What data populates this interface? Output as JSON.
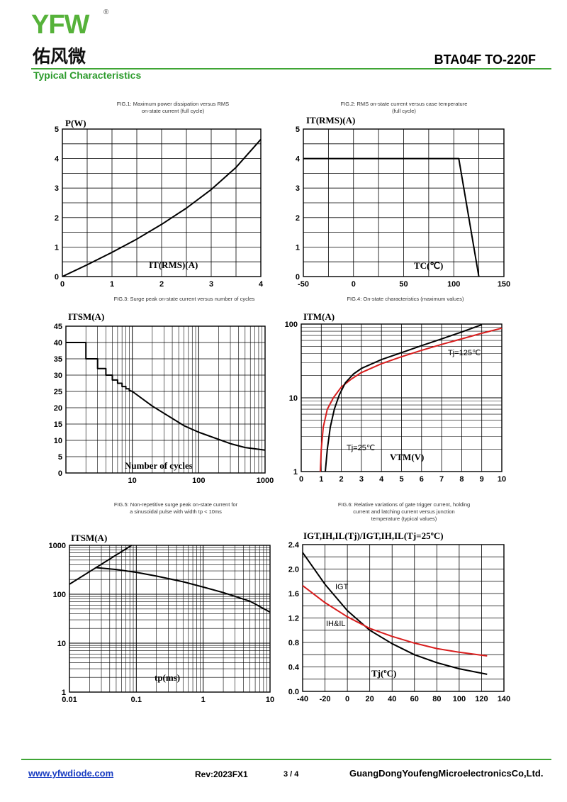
{
  "header": {
    "logo_letters": "YFW",
    "logo_registered": "®",
    "logo_cn": "佑风微",
    "part_number": "BTA04F   TO-220F",
    "section_title": "Typical Characteristics"
  },
  "footer": {
    "website": "www.yfwdiode.com",
    "revision": "Rev:2023FX1",
    "page": "3 / 4",
    "company": "GuangDongYoufengMicroelectronicsCo,Ltd."
  },
  "colors": {
    "brand_green": "#3fa535",
    "curve_black": "#000000",
    "curve_red": "#d81e1e",
    "grid": "#000000"
  },
  "chart_data": [
    {
      "id": "fig1",
      "type": "line",
      "caption": [
        "FIG.1: Maximum power dissipation versus RMS",
        "on-state current (full cycle)"
      ],
      "ylabel": "P(W)",
      "xlabel": "IT(RMS)(A)",
      "xlim": [
        0,
        4
      ],
      "ylim": [
        0,
        5
      ],
      "x_ticks": [
        "0",
        "1",
        "2",
        "3",
        "4"
      ],
      "y_ticks": [
        "0",
        "1",
        "2",
        "3",
        "4",
        "5"
      ],
      "grid": true,
      "series": [
        {
          "color": "black",
          "x": [
            0,
            0.5,
            1,
            1.5,
            2,
            2.5,
            3,
            3.5,
            4
          ],
          "y": [
            0,
            0.4,
            0.82,
            1.27,
            1.77,
            2.32,
            2.95,
            3.7,
            4.65
          ]
        }
      ]
    },
    {
      "id": "fig2",
      "type": "line",
      "caption": [
        "FIG.2: RMS on-state current versus case temperature",
        "(full cycle)"
      ],
      "ylabel": "IT(RMS)(A)",
      "xlabel": "TC(℃)",
      "xlim": [
        -50,
        150
      ],
      "ylim": [
        0,
        5
      ],
      "x_ticks": [
        "-50",
        "0",
        "50",
        "100",
        "150"
      ],
      "y_ticks": [
        "0",
        "1",
        "2",
        "3",
        "4",
        "5"
      ],
      "grid": true,
      "series": [
        {
          "color": "black",
          "x": [
            -50,
            105,
            125
          ],
          "y": [
            4,
            4,
            0
          ]
        }
      ]
    },
    {
      "id": "fig3",
      "type": "line",
      "caption": [
        "FIG.3: Surge peak on-state current versus number of cycles"
      ],
      "ylabel": "ITSM(A)",
      "xlabel": "Number of cycles",
      "x_scale": "log",
      "xlim": [
        1,
        1000
      ],
      "ylim": [
        0,
        45
      ],
      "x_ticks": [
        "10",
        "100",
        "1000"
      ],
      "y_ticks": [
        "0",
        "5",
        "10",
        "15",
        "20",
        "25",
        "30",
        "35",
        "40",
        "45"
      ],
      "grid": true,
      "series": [
        {
          "color": "black",
          "x": [
            1,
            2,
            2,
            3,
            3,
            4,
            4,
            5,
            5,
            6,
            6,
            7,
            7,
            8,
            8,
            9,
            9,
            10,
            20,
            60,
            100,
            300,
            500,
            1000
          ],
          "y": [
            40,
            40,
            35,
            35,
            32,
            32,
            30,
            30,
            28.5,
            28.5,
            27.5,
            27.5,
            26.5,
            26.5,
            25.8,
            25.8,
            25.3,
            25,
            20.5,
            14.5,
            12.5,
            9,
            7.8,
            7
          ]
        }
      ]
    },
    {
      "id": "fig4",
      "type": "line",
      "caption": [
        "FIG.4: On-state characteristics (maximum values)"
      ],
      "ylabel": "ITM(A)",
      "xlabel": "VTM(V)",
      "y_scale": "log",
      "xlim": [
        0,
        10
      ],
      "ylim": [
        1,
        100
      ],
      "x_ticks": [
        "0",
        "1",
        "2",
        "3",
        "4",
        "5",
        "6",
        "7",
        "8",
        "9",
        "10"
      ],
      "y_ticks": [
        "1",
        "10",
        "100"
      ],
      "grid": true,
      "annotations": [
        "Tj=125℃",
        "Tj=25℃"
      ],
      "series": [
        {
          "name": "Tj=125℃",
          "color": "red",
          "x": [
            0.95,
            1.0,
            1.1,
            1.3,
            1.6,
            2.0,
            2.5,
            3.0,
            4.0,
            5.0,
            6.0,
            7.0,
            8.0,
            9.0,
            10.0
          ],
          "y": [
            1,
            2,
            4,
            7,
            10,
            14,
            18,
            22,
            29,
            36,
            44,
            53,
            63,
            75,
            88
          ]
        },
        {
          "name": "Tj=25℃",
          "color": "black",
          "x": [
            1.2,
            1.3,
            1.45,
            1.65,
            1.9,
            2.2,
            2.6,
            3.0,
            4.0,
            5.0,
            6.0,
            7.0,
            8.0,
            9.0
          ],
          "y": [
            1,
            2,
            4,
            7,
            11,
            16,
            21,
            25,
            33,
            41,
            51,
            63,
            78,
            98
          ]
        }
      ]
    },
    {
      "id": "fig5",
      "type": "line",
      "caption": [
        "FIG.5: Non-repetitive surge peak on-state current for",
        "a sinusoidal pulse with width tp < 10ms"
      ],
      "ylabel": "ITSM(A)",
      "xlabel": "tp(ms)",
      "x_scale": "log",
      "y_scale": "log",
      "xlim": [
        0.01,
        10
      ],
      "ylim": [
        1,
        1000
      ],
      "x_ticks": [
        "0.01",
        "0.1",
        "1",
        "10"
      ],
      "y_ticks": [
        "1",
        "10",
        "100",
        "1000"
      ],
      "grid": true,
      "series": [
        {
          "color": "black",
          "x": [
            0.01,
            0.085
          ],
          "y": [
            160,
            1000
          ]
        },
        {
          "color": "black",
          "x": [
            0.025,
            0.05,
            0.1,
            0.2,
            0.5,
            1,
            2,
            5,
            10
          ],
          "y": [
            350,
            320,
            280,
            235,
            180,
            140,
            108,
            72,
            43
          ]
        }
      ]
    },
    {
      "id": "fig6",
      "type": "line",
      "caption": [
        "FIG.6: Relative variations of gate trigger current, holding",
        "current and latching current versus junction",
        "temperature (typical values)"
      ],
      "ylabel": "IGT,IH,IL(Tj)/IGT,IH,IL(Tj=25ºC)",
      "xlabel": "Tj(ºC)",
      "xlim": [
        -40,
        140
      ],
      "ylim": [
        0,
        2.4
      ],
      "x_ticks": [
        "-40",
        "-20",
        "0",
        "20",
        "40",
        "60",
        "80",
        "100",
        "120",
        "140"
      ],
      "y_ticks": [
        "0.0",
        "0.4",
        "0.8",
        "1.2",
        "1.6",
        "2.0",
        "2.4"
      ],
      "grid": true,
      "annotations": [
        "IGT",
        "IH&IL"
      ],
      "series": [
        {
          "name": "IGT",
          "color": "black",
          "x": [
            -40,
            -20,
            0,
            20,
            40,
            60,
            80,
            100,
            125
          ],
          "y": [
            2.27,
            1.75,
            1.32,
            1.0,
            0.78,
            0.6,
            0.47,
            0.37,
            0.28
          ]
        },
        {
          "name": "IH&IL",
          "color": "red",
          "x": [
            -40,
            -20,
            0,
            20,
            40,
            60,
            80,
            100,
            125
          ],
          "y": [
            1.73,
            1.45,
            1.22,
            1.03,
            0.9,
            0.79,
            0.7,
            0.64,
            0.58
          ]
        }
      ]
    }
  ]
}
